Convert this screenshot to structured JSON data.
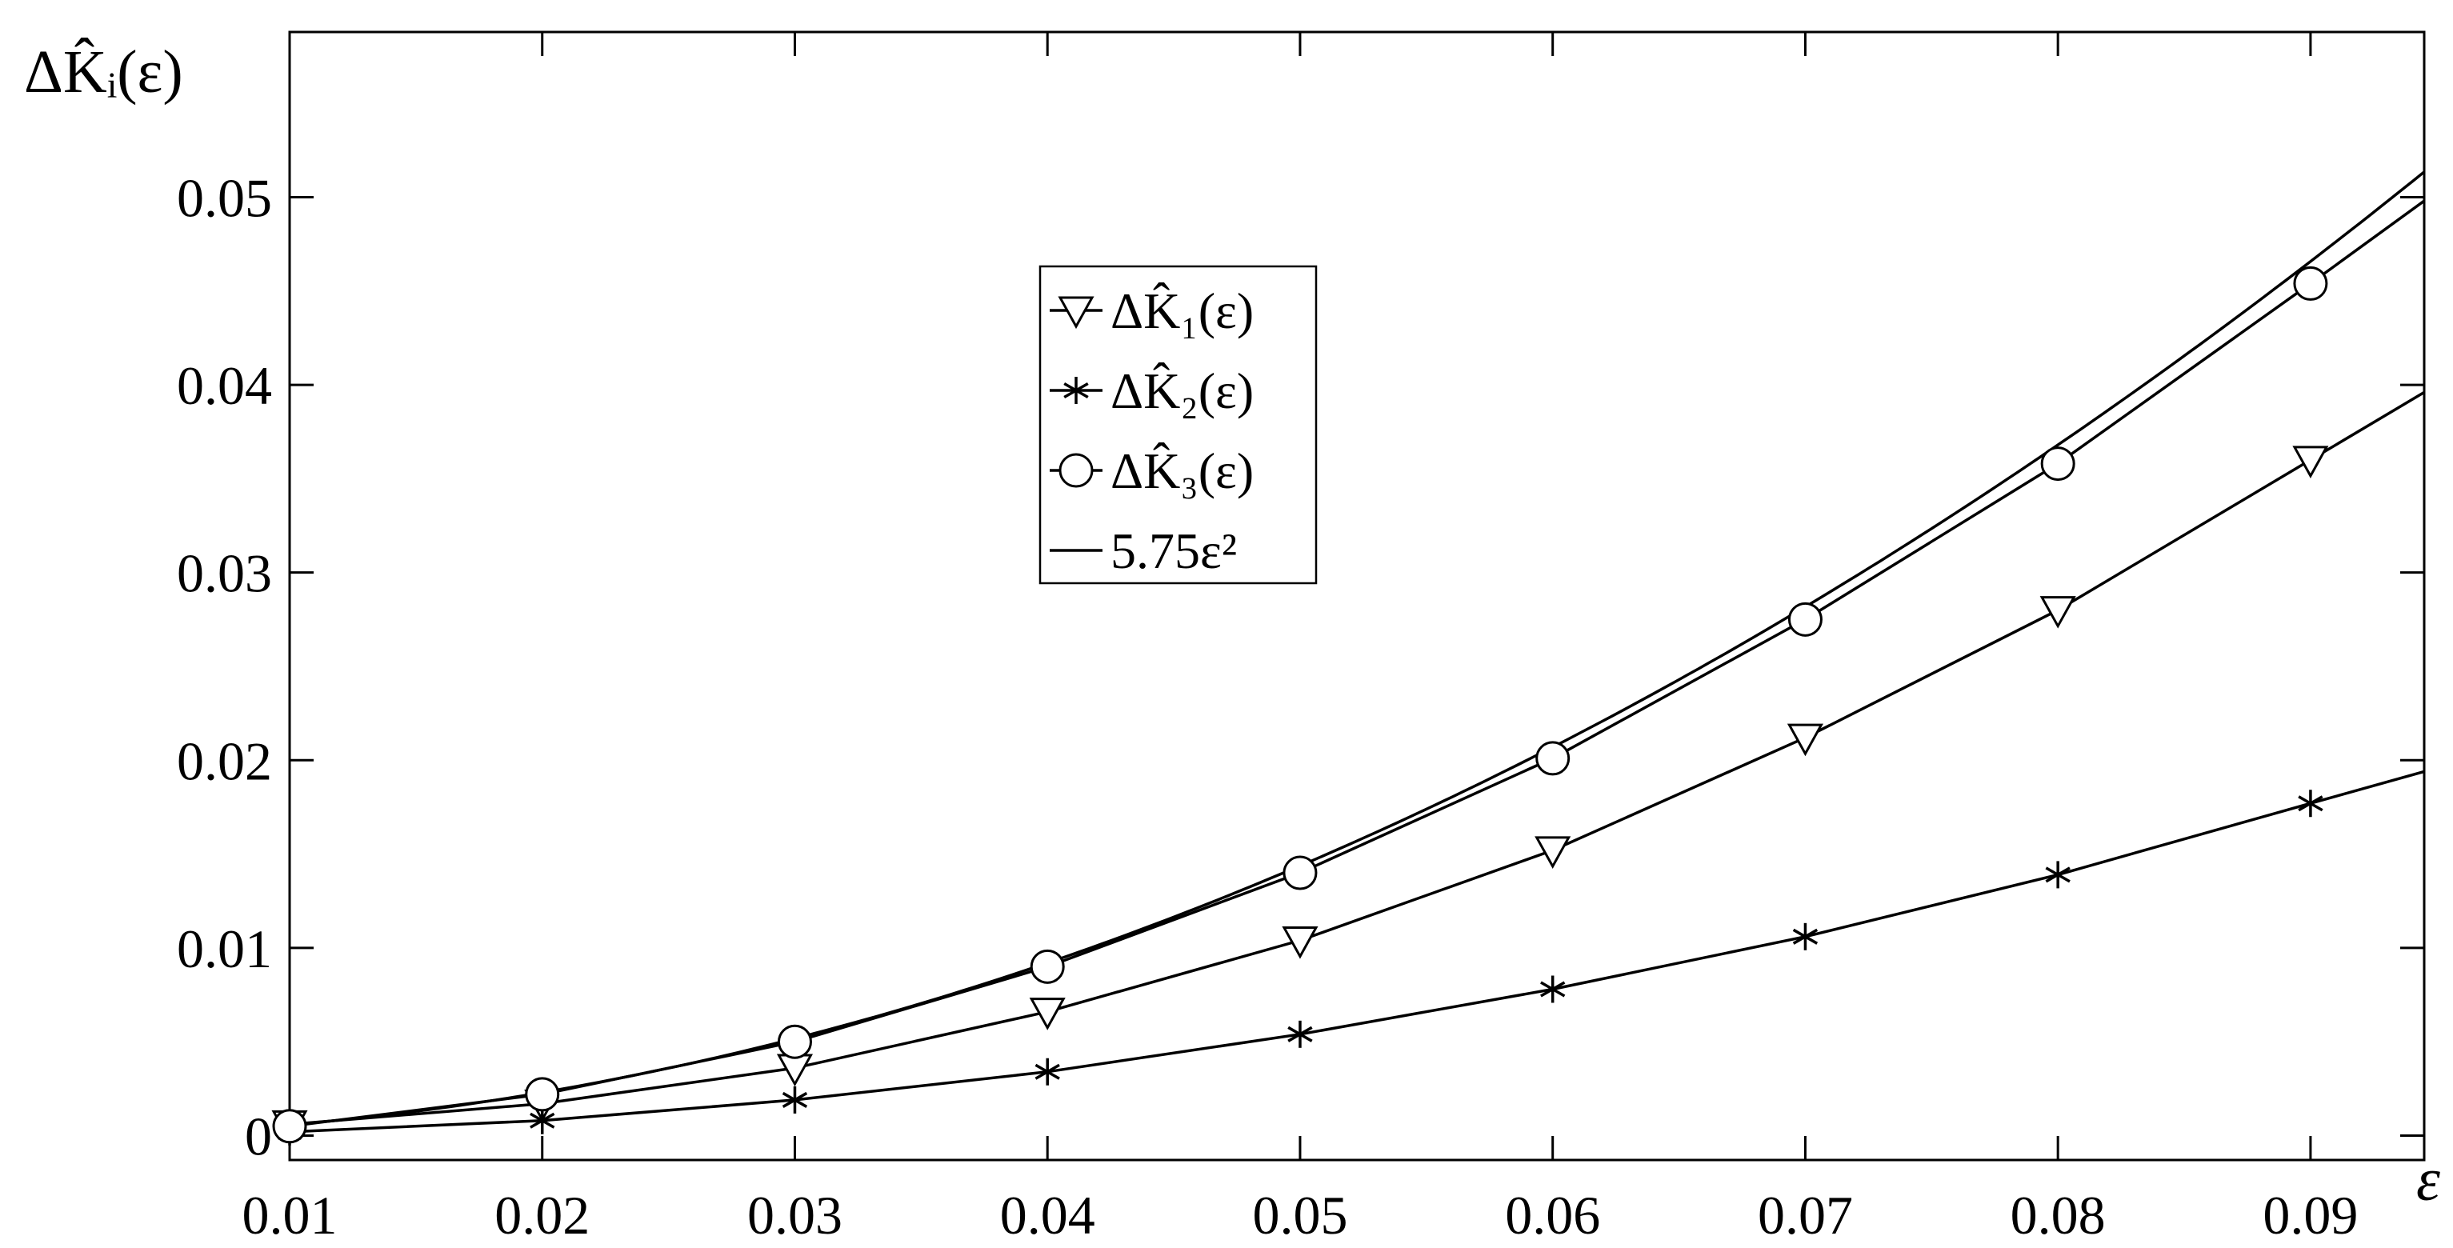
{
  "chart_data": {
    "type": "line",
    "title": "",
    "xlabel": "ε",
    "ylabel": "ΔK̂ᵢ(ε)",
    "xlim": [
      0.01,
      0.0945
    ],
    "ylim": [
      -0.0013,
      0.0588
    ],
    "xticks": [
      "0.01",
      "0.02",
      "0.03",
      "0.04",
      "0.05",
      "0.06",
      "0.07",
      "0.08",
      "0.09"
    ],
    "yticks": [
      "0",
      "0.01",
      "0.02",
      "0.03",
      "0.04",
      "0.05"
    ],
    "grid": false,
    "legend_position": "top-center",
    "series": [
      {
        "name": "ΔK̂₁(ε)",
        "marker": "triangle-down",
        "x": [
          0.01,
          0.02,
          0.03,
          0.04,
          0.05,
          0.06,
          0.07,
          0.08,
          0.09,
          0.0945
        ],
        "y": [
          0.0006,
          0.0017,
          0.0036,
          0.0066,
          0.0104,
          0.0152,
          0.0212,
          0.028,
          0.036,
          0.0396
        ],
        "marker_x": [
          0.01,
          0.02,
          0.03,
          0.04,
          0.05,
          0.06,
          0.07,
          0.08,
          0.09
        ]
      },
      {
        "name": "ΔK̂₂(ε)",
        "marker": "asterisk",
        "x": [
          0.01,
          0.02,
          0.03,
          0.04,
          0.05,
          0.06,
          0.07,
          0.08,
          0.09,
          0.0945
        ],
        "y": [
          0.0002,
          0.0008,
          0.0019,
          0.0034,
          0.0054,
          0.0078,
          0.0106,
          0.0139,
          0.0177,
          0.0194
        ],
        "marker_x": [
          0.01,
          0.02,
          0.03,
          0.04,
          0.05,
          0.06,
          0.07,
          0.08,
          0.09
        ]
      },
      {
        "name": "ΔK̂₃(ε)",
        "marker": "circle",
        "x": [
          0.01,
          0.02,
          0.03,
          0.04,
          0.05,
          0.06,
          0.07,
          0.08,
          0.09,
          0.0945
        ],
        "y": [
          0.0005,
          0.0022,
          0.005,
          0.009,
          0.014,
          0.0201,
          0.0275,
          0.0358,
          0.0454,
          0.0498
        ],
        "marker_x": [
          0.01,
          0.02,
          0.03,
          0.04,
          0.05,
          0.06,
          0.07,
          0.08,
          0.09
        ]
      },
      {
        "name": "5.75ε²",
        "marker": "none",
        "function": "5.75*x^2"
      }
    ]
  },
  "colors": {
    "line": "#000000",
    "background": "#ffffff"
  }
}
